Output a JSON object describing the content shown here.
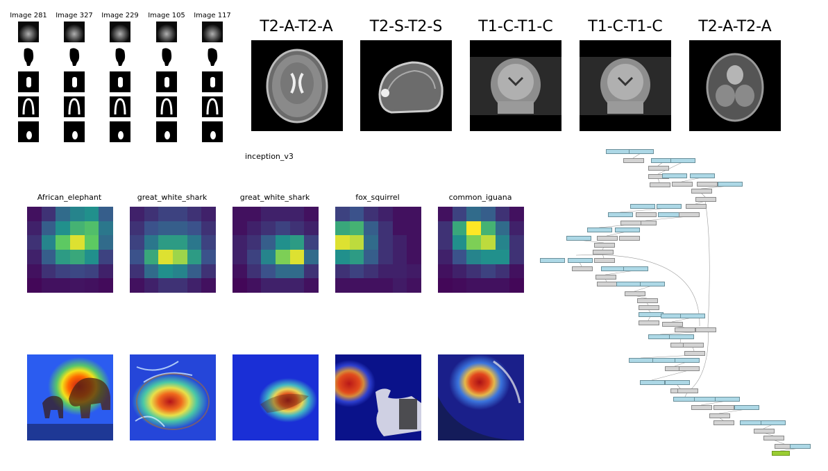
{
  "ultrasound": {
    "titles": [
      "Image 281",
      "Image 327",
      "Image 229",
      "Image 105",
      "Image 117"
    ]
  },
  "mri": {
    "titles": [
      "T2-A-T2-A",
      "T2-S-T2-S",
      "T1-C-T1-C",
      "T1-C-T1-C",
      "T2-A-T2-A"
    ]
  },
  "model": {
    "name": "inception_v3"
  },
  "classes": {
    "labels": [
      "African_elephant",
      "great_white_shark",
      "great_white_shark",
      "fox_squirrel",
      "common_iguana"
    ]
  },
  "heatmaps": [
    [
      [
        0.05,
        0.15,
        0.35,
        0.45,
        0.5,
        0.3
      ],
      [
        0.1,
        0.3,
        0.5,
        0.65,
        0.7,
        0.4
      ],
      [
        0.15,
        0.45,
        0.75,
        0.95,
        0.75,
        0.35
      ],
      [
        0.1,
        0.3,
        0.55,
        0.6,
        0.5,
        0.2
      ],
      [
        0.05,
        0.15,
        0.2,
        0.22,
        0.2,
        0.1
      ],
      [
        0.02,
        0.05,
        0.05,
        0.06,
        0.05,
        0.03
      ]
    ],
    [
      [
        0.1,
        0.15,
        0.2,
        0.2,
        0.15,
        0.1
      ],
      [
        0.15,
        0.25,
        0.3,
        0.3,
        0.25,
        0.15
      ],
      [
        0.2,
        0.4,
        0.55,
        0.55,
        0.4,
        0.2
      ],
      [
        0.25,
        0.6,
        0.95,
        0.85,
        0.55,
        0.25
      ],
      [
        0.15,
        0.35,
        0.5,
        0.45,
        0.3,
        0.15
      ],
      [
        0.05,
        0.1,
        0.15,
        0.15,
        0.1,
        0.05
      ]
    ],
    [
      [
        0.05,
        0.05,
        0.1,
        0.1,
        0.1,
        0.05
      ],
      [
        0.05,
        0.1,
        0.15,
        0.2,
        0.15,
        0.1
      ],
      [
        0.1,
        0.15,
        0.3,
        0.5,
        0.55,
        0.2
      ],
      [
        0.1,
        0.2,
        0.45,
        0.8,
        0.95,
        0.35
      ],
      [
        0.05,
        0.15,
        0.25,
        0.35,
        0.35,
        0.15
      ],
      [
        0.02,
        0.05,
        0.1,
        0.1,
        0.1,
        0.05
      ]
    ],
    [
      [
        0.2,
        0.25,
        0.15,
        0.1,
        0.05,
        0.05
      ],
      [
        0.6,
        0.65,
        0.3,
        0.15,
        0.05,
        0.05
      ],
      [
        0.95,
        0.9,
        0.35,
        0.15,
        0.1,
        0.05
      ],
      [
        0.5,
        0.55,
        0.3,
        0.15,
        0.1,
        0.05
      ],
      [
        0.15,
        0.2,
        0.15,
        0.1,
        0.1,
        0.08
      ],
      [
        0.05,
        0.05,
        0.05,
        0.05,
        0.08,
        0.05
      ]
    ],
    [
      [
        0.05,
        0.2,
        0.35,
        0.3,
        0.15,
        0.05
      ],
      [
        0.15,
        0.6,
        1.0,
        0.65,
        0.35,
        0.1
      ],
      [
        0.15,
        0.5,
        0.8,
        0.9,
        0.45,
        0.15
      ],
      [
        0.1,
        0.25,
        0.45,
        0.5,
        0.5,
        0.15
      ],
      [
        0.05,
        0.1,
        0.15,
        0.2,
        0.15,
        0.05
      ],
      [
        0.02,
        0.03,
        0.05,
        0.05,
        0.05,
        0.02
      ]
    ]
  ]
}
